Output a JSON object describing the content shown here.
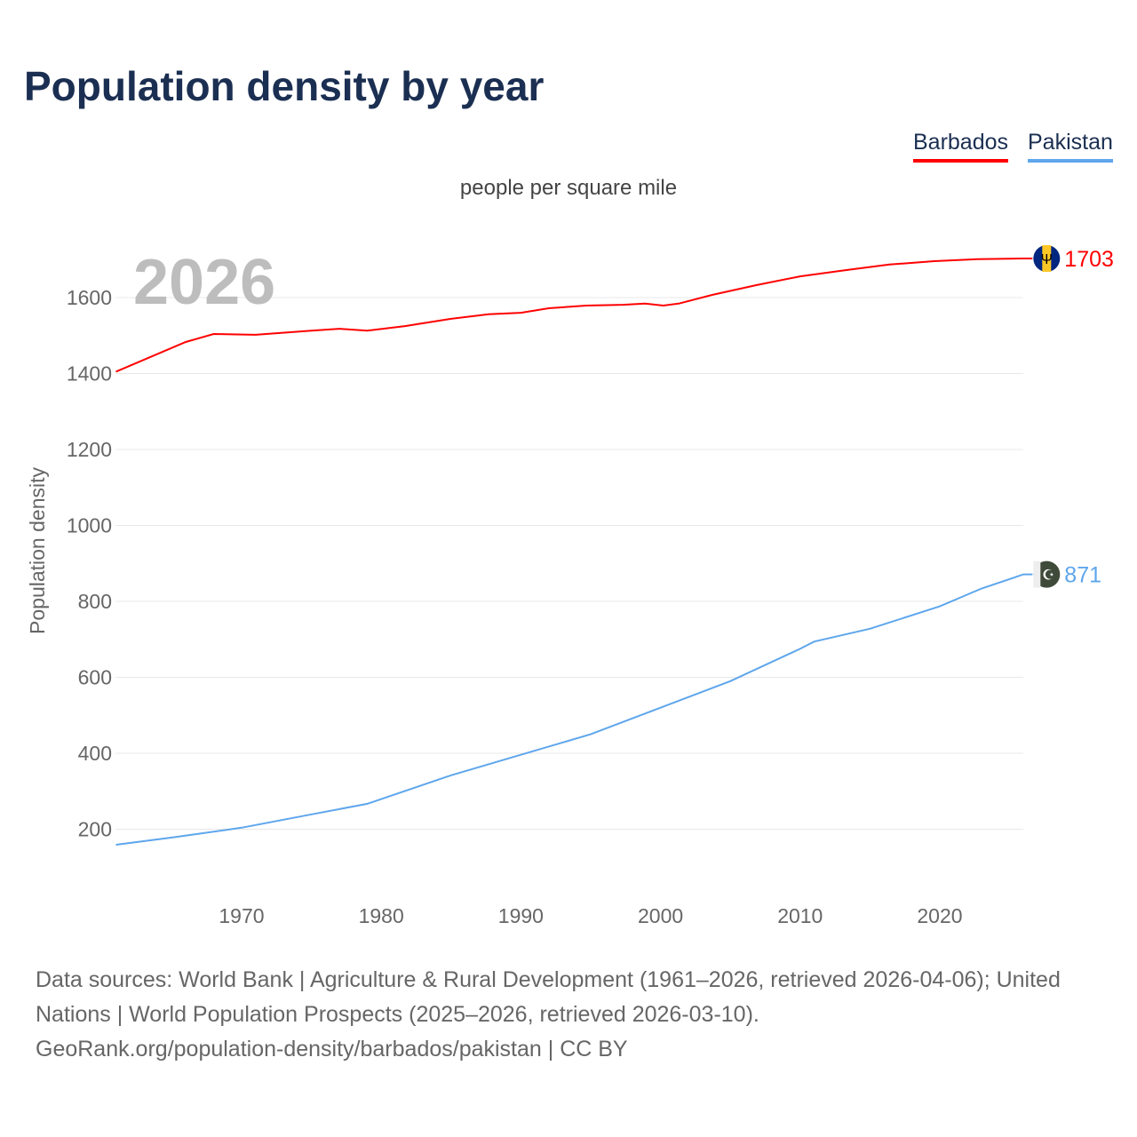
{
  "title": "Population density by year",
  "legend": [
    {
      "label": "Barbados",
      "color": "#ff0000"
    },
    {
      "label": "Pakistan",
      "color": "#5ea6ec"
    }
  ],
  "unit_label": "people per square mile",
  "year_label": "2026",
  "footer": {
    "line1": "Data sources: World Bank | Agriculture & Rural Development (1961–2026, retrieved 2026-04-06); United Nations | World Population Prospects (2025–2026, retrieved 2026-03-10).",
    "line2": "GeoRank.org/population-density/barbados/pakistan | CC BY"
  },
  "chart_data": {
    "type": "line",
    "title": "Population density by year",
    "xlabel": "",
    "ylabel": "Population density",
    "xlim": [
      1961,
      2026
    ],
    "ylim": [
      100,
      1800
    ],
    "x_ticks": [
      1970,
      1980,
      1990,
      2000,
      2010,
      2020
    ],
    "y_ticks": [
      200,
      400,
      600,
      800,
      1000,
      1200,
      1400,
      1600
    ],
    "grid": true,
    "legend_position": "top-right",
    "series": [
      {
        "name": "Barbados",
        "color": "#ff0000",
        "end_label": "1703",
        "x": [
          1961,
          1966,
          1968,
          1971,
          1975,
          1977,
          1979,
          1981.7,
          1985,
          1987.7,
          1990,
          1992,
          1994.7,
          1997.3,
          1998.9,
          2000.2,
          2001.3,
          2003.7,
          2006.9,
          2010,
          2013.2,
          2016.4,
          2019.6,
          2022.7,
          2026
        ],
        "y": [
          1405,
          1483,
          1504,
          1502,
          1513,
          1518,
          1513,
          1525,
          1544,
          1556,
          1560,
          1572,
          1579,
          1581,
          1584,
          1579,
          1584,
          1607,
          1633,
          1656,
          1672,
          1687,
          1696,
          1701,
          1703
        ]
      },
      {
        "name": "Pakistan",
        "color": "#5ea6ec",
        "end_label": "871",
        "x": [
          1961,
          1965,
          1970,
          1975,
          1979,
          1985,
          1990,
          1995,
          2000,
          2005,
          2010,
          2011,
          2015,
          2020,
          2023,
          2026
        ],
        "y": [
          159,
          178,
          204,
          239,
          267,
          342,
          396,
          450,
          520,
          590,
          675,
          694,
          728,
          787,
          834,
          871
        ]
      }
    ]
  }
}
